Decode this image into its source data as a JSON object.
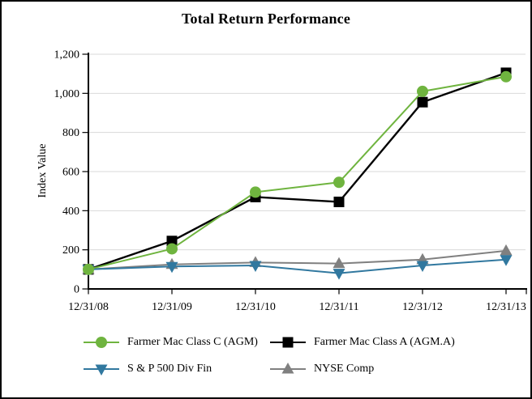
{
  "chart_data": {
    "type": "line",
    "title": "Total Return Performance",
    "xlabel": "",
    "ylabel": "Index Value",
    "categories": [
      "12/31/08",
      "12/31/09",
      "12/31/10",
      "12/31/11",
      "12/31/12",
      "12/31/13"
    ],
    "series": [
      {
        "name": "Farmer Mac Class C (AGM)",
        "marker": "circle",
        "color": "#6FB43F",
        "values": [
          100,
          205,
          495,
          545,
          1010,
          1085
        ]
      },
      {
        "name": "Farmer Mac Class A (AGM.A)",
        "marker": "square",
        "color": "#000000",
        "values": [
          100,
          245,
          470,
          445,
          955,
          1105
        ]
      },
      {
        "name": "S & P 500 Div Fin",
        "marker": "triangle-down",
        "color": "#31789F",
        "values": [
          100,
          115,
          120,
          80,
          120,
          150
        ]
      },
      {
        "name": "NYSE Comp",
        "marker": "triangle-up",
        "color": "#808080",
        "values": [
          100,
          125,
          135,
          130,
          150,
          195
        ]
      }
    ],
    "ylim": [
      0,
      1200
    ],
    "y_ticks": [
      0,
      200,
      400,
      600,
      800,
      1000,
      1200
    ],
    "y_tick_labels": [
      "0",
      "200",
      "400",
      "600",
      "800",
      "1,000",
      "1,200"
    ],
    "grid": true,
    "gridline_color": "#D9D9D9",
    "axis_color": "#000000",
    "legend_position": "bottom",
    "draw_order": [
      1,
      3,
      2,
      0
    ]
  }
}
